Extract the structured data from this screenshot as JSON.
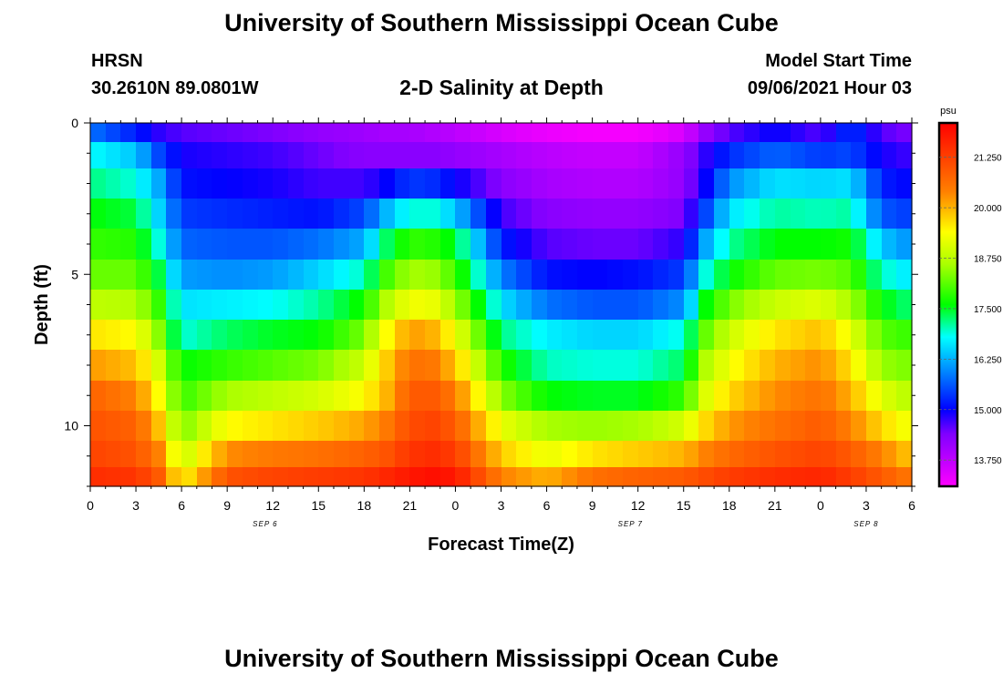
{
  "header": {
    "title": "University of Southern Mississippi Ocean Cube",
    "station": "HRSN",
    "coordinates": "30.2610N  89.0801W",
    "subtitle": "2-D Salinity at Depth",
    "model_start_label": "Model Start Time",
    "model_start_value": "09/06/2021 Hour 03"
  },
  "footer": {
    "title": "University of Southern Mississippi Ocean Cube"
  },
  "chart_data": {
    "type": "heatmap",
    "title": "2-D Salinity at Depth",
    "xlabel": "Forecast Time(Z)",
    "ylabel": "Depth (ft)",
    "x_tick_labels": [
      "0",
      "3",
      "6",
      "9",
      "12",
      "15",
      "18",
      "21",
      "0",
      "3",
      "6",
      "9",
      "12",
      "15",
      "18",
      "21",
      "0",
      "3",
      "6"
    ],
    "x_range_hours": [
      0,
      54
    ],
    "date_labels": [
      {
        "text": "SEP 6",
        "hour": 11.5
      },
      {
        "text": "SEP 7",
        "hour": 35.5
      },
      {
        "text": "SEP 8",
        "hour": 51
      }
    ],
    "y_ticks": [
      0,
      5,
      10
    ],
    "y_range_ft": [
      0,
      12
    ],
    "colorbar": {
      "unit": "psu",
      "min": 13.1,
      "max": 22.1,
      "tick_labels": [
        "21.250",
        "20.000",
        "18.750",
        "17.500",
        "16.250",
        "15.000",
        "13.750"
      ],
      "tick_values": [
        21.25,
        20.0,
        18.75,
        17.5,
        16.25,
        15.0,
        13.75
      ],
      "color_stops": [
        {
          "value": 13.1,
          "color": "#ff00ff"
        },
        {
          "value": 14.4,
          "color": "#8000ff"
        },
        {
          "value": 15.0,
          "color": "#0000ff"
        },
        {
          "value": 15.9,
          "color": "#0080ff"
        },
        {
          "value": 16.8,
          "color": "#00ffff"
        },
        {
          "value": 17.6,
          "color": "#00ff00"
        },
        {
          "value": 18.6,
          "color": "#aaff00"
        },
        {
          "value": 19.4,
          "color": "#ffff00"
        },
        {
          "value": 20.4,
          "color": "#ff8000"
        },
        {
          "value": 22.1,
          "color": "#ff0000"
        }
      ]
    },
    "row_depths_ft": [
      0.25,
      1.0,
      2.0,
      3.0,
      4.0,
      5.0,
      6.0,
      7.0,
      8.0,
      9.0,
      10.0,
      11.0,
      11.75
    ],
    "profile_hours": [
      0,
      3,
      4.5,
      6,
      9,
      12,
      15,
      18,
      19.5,
      21,
      22.5,
      24,
      27,
      30,
      33,
      36,
      39,
      40.5,
      42,
      45,
      48,
      50,
      52,
      54
    ],
    "salinity_psu": [
      [
        15.8,
        15.2,
        14.8,
        14.6,
        14.5,
        14.4,
        14.2,
        14.1,
        14.0,
        14.0,
        13.9,
        13.8,
        13.5,
        13.3,
        13.2,
        13.2,
        13.5,
        14.2,
        14.6,
        15.0,
        14.6,
        15.4,
        14.6,
        14.4
      ],
      [
        16.8,
        16.4,
        15.5,
        14.9,
        14.8,
        14.7,
        14.5,
        14.3,
        14.3,
        14.3,
        14.3,
        14.2,
        14.0,
        13.8,
        13.7,
        13.7,
        14.2,
        14.8,
        15.3,
        15.7,
        15.4,
        15.5,
        14.9,
        14.7
      ],
      [
        17.2,
        16.9,
        16.2,
        15.1,
        15.0,
        14.9,
        14.7,
        14.7,
        15.0,
        15.4,
        15.3,
        15.0,
        14.3,
        14.0,
        13.9,
        13.9,
        14.2,
        15.0,
        16.0,
        16.6,
        16.5,
        16.6,
        15.2,
        15.0
      ],
      [
        17.6,
        17.4,
        16.5,
        15.4,
        15.3,
        15.2,
        15.1,
        15.5,
        16.3,
        16.9,
        16.9,
        16.4,
        14.7,
        14.3,
        14.2,
        14.2,
        14.4,
        15.5,
        16.6,
        17.1,
        17.0,
        17.1,
        15.6,
        15.4
      ],
      [
        17.9,
        17.8,
        16.9,
        15.7,
        15.6,
        15.6,
        15.8,
        16.2,
        17.3,
        17.9,
        17.8,
        17.5,
        15.2,
        14.6,
        14.5,
        14.5,
        14.8,
        16.2,
        17.1,
        17.6,
        17.6,
        17.7,
        16.4,
        16.0
      ],
      [
        18.2,
        18.2,
        17.4,
        16.1,
        16.0,
        16.1,
        16.5,
        17.0,
        18.0,
        18.6,
        18.5,
        18.0,
        15.9,
        15.1,
        15.0,
        15.1,
        15.4,
        16.9,
        17.6,
        18.2,
        18.3,
        18.1,
        17.0,
        16.6
      ],
      [
        18.8,
        18.7,
        17.9,
        16.6,
        16.7,
        16.8,
        17.1,
        17.7,
        18.7,
        19.3,
        19.2,
        18.6,
        16.6,
        15.8,
        15.6,
        15.6,
        16.0,
        17.6,
        18.3,
        18.9,
        19.1,
        18.6,
        17.6,
        17.2
      ],
      [
        19.6,
        19.4,
        18.4,
        16.9,
        17.3,
        17.5,
        17.6,
        18.3,
        19.4,
        20.2,
        20.0,
        19.3,
        17.2,
        16.7,
        16.5,
        16.5,
        16.9,
        18.2,
        18.9,
        19.6,
        19.9,
        19.2,
        18.1,
        17.9
      ],
      [
        20.2,
        19.9,
        19.0,
        17.6,
        17.9,
        18.1,
        18.3,
        18.9,
        19.8,
        20.6,
        20.5,
        19.9,
        17.8,
        17.0,
        16.9,
        16.9,
        17.3,
        18.7,
        19.3,
        20.0,
        20.3,
        19.6,
        18.5,
        18.3
      ],
      [
        20.8,
        20.4,
        19.4,
        17.9,
        18.6,
        18.8,
        19.0,
        19.4,
        20.0,
        20.9,
        20.9,
        20.5,
        18.4,
        17.6,
        17.5,
        17.5,
        17.9,
        19.1,
        19.7,
        20.3,
        20.6,
        20.0,
        19.1,
        18.7
      ],
      [
        21.0,
        20.8,
        19.9,
        18.3,
        19.4,
        19.6,
        19.8,
        20.1,
        20.5,
        21.1,
        21.2,
        20.9,
        19.2,
        18.6,
        18.5,
        18.6,
        19.0,
        19.7,
        20.2,
        20.6,
        20.9,
        20.4,
        19.7,
        19.2
      ],
      [
        21.2,
        21.0,
        20.4,
        18.8,
        20.3,
        20.5,
        20.6,
        20.8,
        21.0,
        21.4,
        21.5,
        21.3,
        19.8,
        19.2,
        19.6,
        19.8,
        20.0,
        20.4,
        20.7,
        21.0,
        21.2,
        20.9,
        20.4,
        19.8
      ],
      [
        21.5,
        21.4,
        20.9,
        19.4,
        21.0,
        21.2,
        21.3,
        21.4,
        21.6,
        21.8,
        21.9,
        21.8,
        20.4,
        20.0,
        20.6,
        20.8,
        20.9,
        21.1,
        21.3,
        21.5,
        21.6,
        21.3,
        20.9,
        20.5
      ]
    ]
  }
}
